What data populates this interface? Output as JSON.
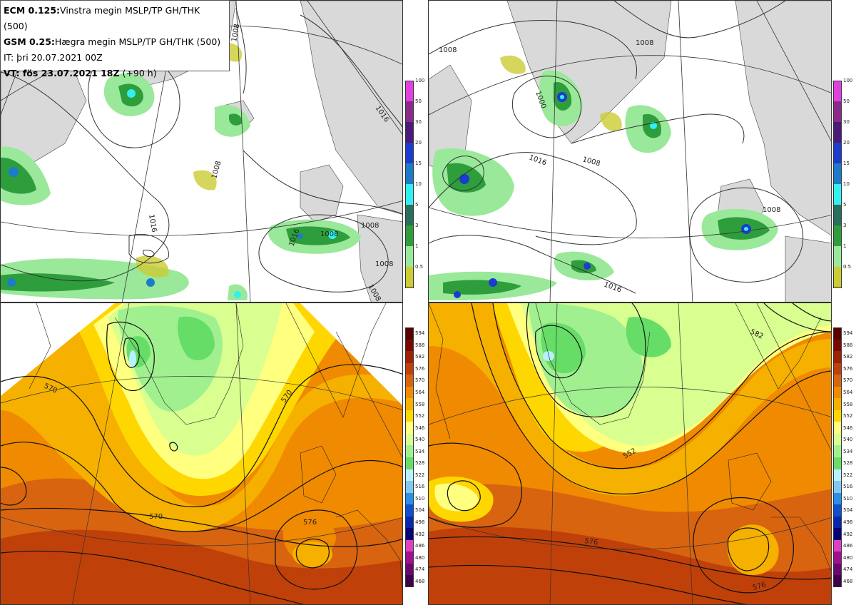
{
  "info": {
    "line1_bold": "ECM 0.125:",
    "line1_text": "Vinstra megin MSLP/TP GH/THK (500)",
    "line2_bold": "GSM 0.25:",
    "line2_text": "Hægra megin MSLP/TP GH/THK (500)",
    "line3": "IT: þri 20.07.2021 00Z",
    "line4_bold": "VT: fös 23.07.2021 18Z",
    "line4_text": "(+90 h)"
  },
  "precip_scale": {
    "labels": [
      "100",
      "50",
      "30",
      "20",
      "15",
      "10",
      "5",
      "3",
      "1",
      "0.5"
    ],
    "colors": [
      "#e040e0",
      "#8c2a8c",
      "#4b1a7a",
      "#1c3bd1",
      "#1c7cc7",
      "#33f0f0",
      "#2a6e5c",
      "#2e9e3c",
      "#9ae89a",
      "#cccc33"
    ]
  },
  "gh_scale": {
    "labels": [
      "594",
      "588",
      "582",
      "576",
      "570",
      "564",
      "558",
      "552",
      "546",
      "540",
      "534",
      "528",
      "522",
      "516",
      "510",
      "504",
      "498",
      "492",
      "486",
      "480",
      "474",
      "468"
    ],
    "colors": [
      "#5a0000",
      "#7a0a00",
      "#9c2200",
      "#c0400a",
      "#d86410",
      "#f08a00",
      "#f5b000",
      "#ffd700",
      "#ffff80",
      "#d8ff90",
      "#a0f090",
      "#66dd66",
      "#b8f0ff",
      "#80c8f0",
      "#2890e8",
      "#1050d0",
      "#0828b0",
      "#06007a",
      "#e040c0",
      "#a01090",
      "#6a0870",
      "#40004a"
    ]
  },
  "contour_labels": {
    "mslp_left": [
      "1008",
      "1016",
      "1008",
      "1016",
      "1008",
      "1008",
      "1008",
      "1016",
      "1008"
    ],
    "mslp_right": [
      "1008",
      "1008",
      "1000",
      "1016",
      "1008",
      "1008",
      "1016"
    ],
    "gh_left": [
      "570",
      "570",
      "570",
      "576"
    ],
    "gh_right": [
      "552",
      "576",
      "576",
      "582"
    ]
  }
}
